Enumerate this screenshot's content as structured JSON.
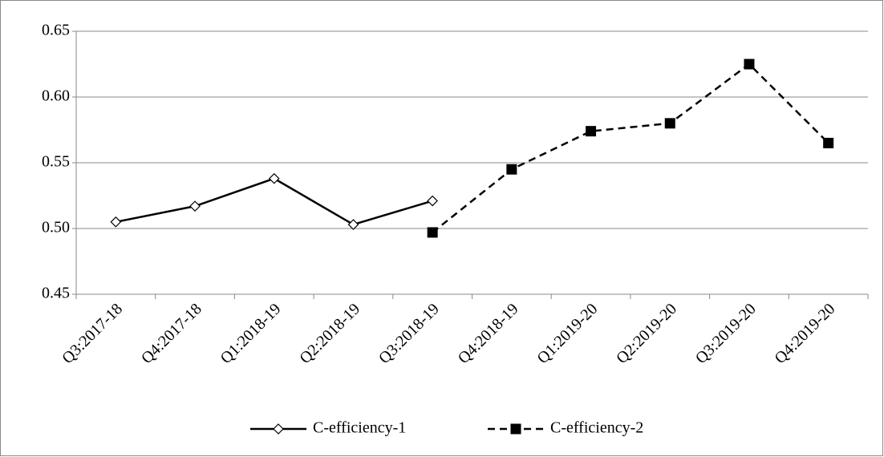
{
  "chart_data": {
    "type": "line",
    "categories": [
      "Q3:2017-18",
      "Q4:2017-18",
      "Q1:2018-19",
      "Q2:2018-19",
      "Q3:2018-19",
      "Q4:2018-19",
      "Q1:2019-20",
      "Q2:2019-20",
      "Q3:2019-20",
      "Q4:2019-20"
    ],
    "series": [
      {
        "name": "C-efficiency-1",
        "color": "#000000",
        "dashed": false,
        "marker": "diamond",
        "values": [
          0.505,
          0.517,
          0.538,
          0.503,
          0.521,
          null,
          null,
          null,
          null,
          null
        ]
      },
      {
        "name": "C-efficiency-2",
        "color": "#000000",
        "dashed": true,
        "marker": "square",
        "values": [
          null,
          null,
          null,
          null,
          0.497,
          0.545,
          0.574,
          0.58,
          0.625,
          0.565
        ]
      }
    ],
    "ylim": [
      0.45,
      0.65
    ],
    "yticks": [
      0.45,
      {
        "value": 0.5,
        "label": "0.50"
      },
      0.55,
      {
        "value": 0.6,
        "label": "0.60"
      },
      0.65
    ],
    "grid": true,
    "legend": "bottom"
  }
}
